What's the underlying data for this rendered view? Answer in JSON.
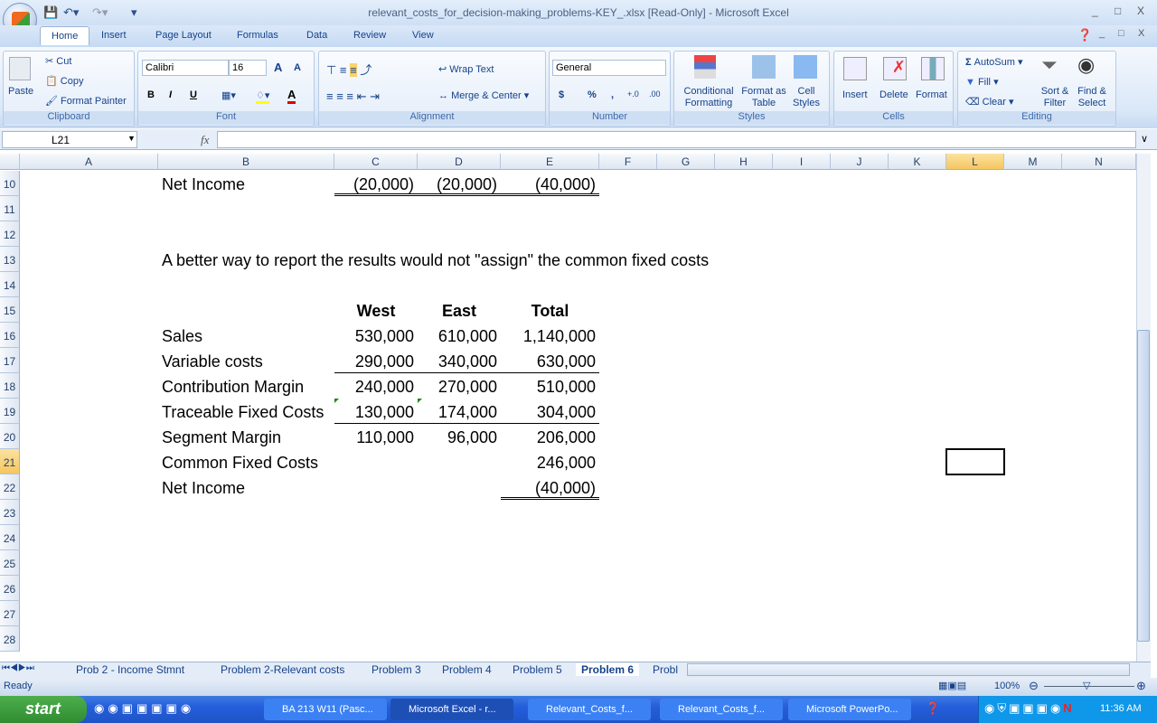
{
  "window": {
    "title": "relevant_costs_for_decision-making_problems-KEY_.xlsx  [Read-Only] - Microsoft Excel",
    "qat": [
      "save-icon",
      "undo-icon",
      "redo-icon",
      "customize-icon"
    ]
  },
  "ribbon_tabs": [
    "Home",
    "Insert",
    "Page Layout",
    "Formulas",
    "Data",
    "Review",
    "View"
  ],
  "clipboard": {
    "paste": "Paste",
    "cut": "Cut",
    "copy": "Copy",
    "format_painter": "Format Painter",
    "label": "Clipboard"
  },
  "font": {
    "name": "Calibri",
    "size": "16",
    "bold": "B",
    "italic": "I",
    "underline": "U",
    "grow": "A",
    "shrink": "A",
    "color": "A",
    "label": "Font"
  },
  "alignment": {
    "wrap": "Wrap Text",
    "merge": "Merge & Center",
    "label": "Alignment"
  },
  "number": {
    "format": "General",
    "currency": "$",
    "percent": "%",
    "comma": ",",
    "inc": "+.0",
    "dec": ".00",
    "label": "Number"
  },
  "styles": {
    "conditional": "Conditional Formatting",
    "format_table": "Format as Table",
    "cell_styles": "Cell Styles",
    "label": "Styles"
  },
  "cells": {
    "insert": "Insert",
    "delete": "Delete",
    "format": "Format",
    "label": "Cells"
  },
  "editing": {
    "autosum": "AutoSum",
    "fill": "Fill",
    "clear": "Clear",
    "sort": "Sort & Filter",
    "find": "Find & Select",
    "label": "Editing"
  },
  "formula_bar": {
    "name_box": "L21",
    "fx": "fx",
    "value": ""
  },
  "columns": [
    "A",
    "B",
    "C",
    "D",
    "E",
    "F",
    "G",
    "H",
    "I",
    "J",
    "K",
    "L",
    "M",
    "N"
  ],
  "selected_column": "L",
  "selected_row": 21,
  "rows": [
    10,
    11,
    12,
    13,
    14,
    15,
    16,
    17,
    18,
    19,
    20,
    21,
    22,
    23,
    24,
    25,
    26,
    27,
    28
  ],
  "cells_data": [
    {
      "ref": "B10",
      "text": "Net Income"
    },
    {
      "ref": "C10",
      "text": "(20,000)"
    },
    {
      "ref": "D10",
      "text": "(20,000)"
    },
    {
      "ref": "E10",
      "text": "(40,000)"
    },
    {
      "ref": "B13",
      "text": "A better way to report the results would not \"assign\" the common fixed costs"
    },
    {
      "ref": "C15",
      "text": "West"
    },
    {
      "ref": "D15",
      "text": "East"
    },
    {
      "ref": "E15",
      "text": "Total"
    },
    {
      "ref": "B16",
      "text": "Sales"
    },
    {
      "ref": "C16",
      "text": "530,000"
    },
    {
      "ref": "D16",
      "text": "610,000"
    },
    {
      "ref": "E16",
      "text": "1,140,000"
    },
    {
      "ref": "B17",
      "text": "Variable costs"
    },
    {
      "ref": "C17",
      "text": "290,000"
    },
    {
      "ref": "D17",
      "text": "340,000"
    },
    {
      "ref": "E17",
      "text": "630,000"
    },
    {
      "ref": "B18",
      "text": "Contribution Margin"
    },
    {
      "ref": "C18",
      "text": "240,000"
    },
    {
      "ref": "D18",
      "text": "270,000"
    },
    {
      "ref": "E18",
      "text": "510,000"
    },
    {
      "ref": "B19",
      "text": "Traceable Fixed Costs"
    },
    {
      "ref": "C19",
      "text": "130,000"
    },
    {
      "ref": "D19",
      "text": "174,000"
    },
    {
      "ref": "E19",
      "text": "304,000"
    },
    {
      "ref": "B20",
      "text": "Segment Margin"
    },
    {
      "ref": "C20",
      "text": "110,000"
    },
    {
      "ref": "D20",
      "text": "96,000"
    },
    {
      "ref": "E20",
      "text": "206,000"
    },
    {
      "ref": "B21",
      "text": "Common Fixed Costs"
    },
    {
      "ref": "E21",
      "text": "246,000"
    },
    {
      "ref": "B22",
      "text": "Net Income"
    },
    {
      "ref": "E22",
      "text": "(40,000)"
    }
  ],
  "sheet_tabs": [
    "Prob 2 - Income Stmnt",
    "Problem 2-Relevant costs",
    "Problem 3",
    "Problem 4",
    "Problem 5",
    "Problem 6",
    "Probl"
  ],
  "active_sheet": "Problem 6",
  "status": {
    "text": "Ready",
    "zoom": "100%"
  },
  "taskbar": {
    "start": "start",
    "tasks": [
      "BA 213 W11 (Pasc...",
      "Microsoft Excel - r...",
      "Relevant_Costs_f...",
      "Relevant_Costs_f...",
      "Microsoft PowerPo..."
    ],
    "active_task": 1,
    "clock": "11:36 AM"
  }
}
